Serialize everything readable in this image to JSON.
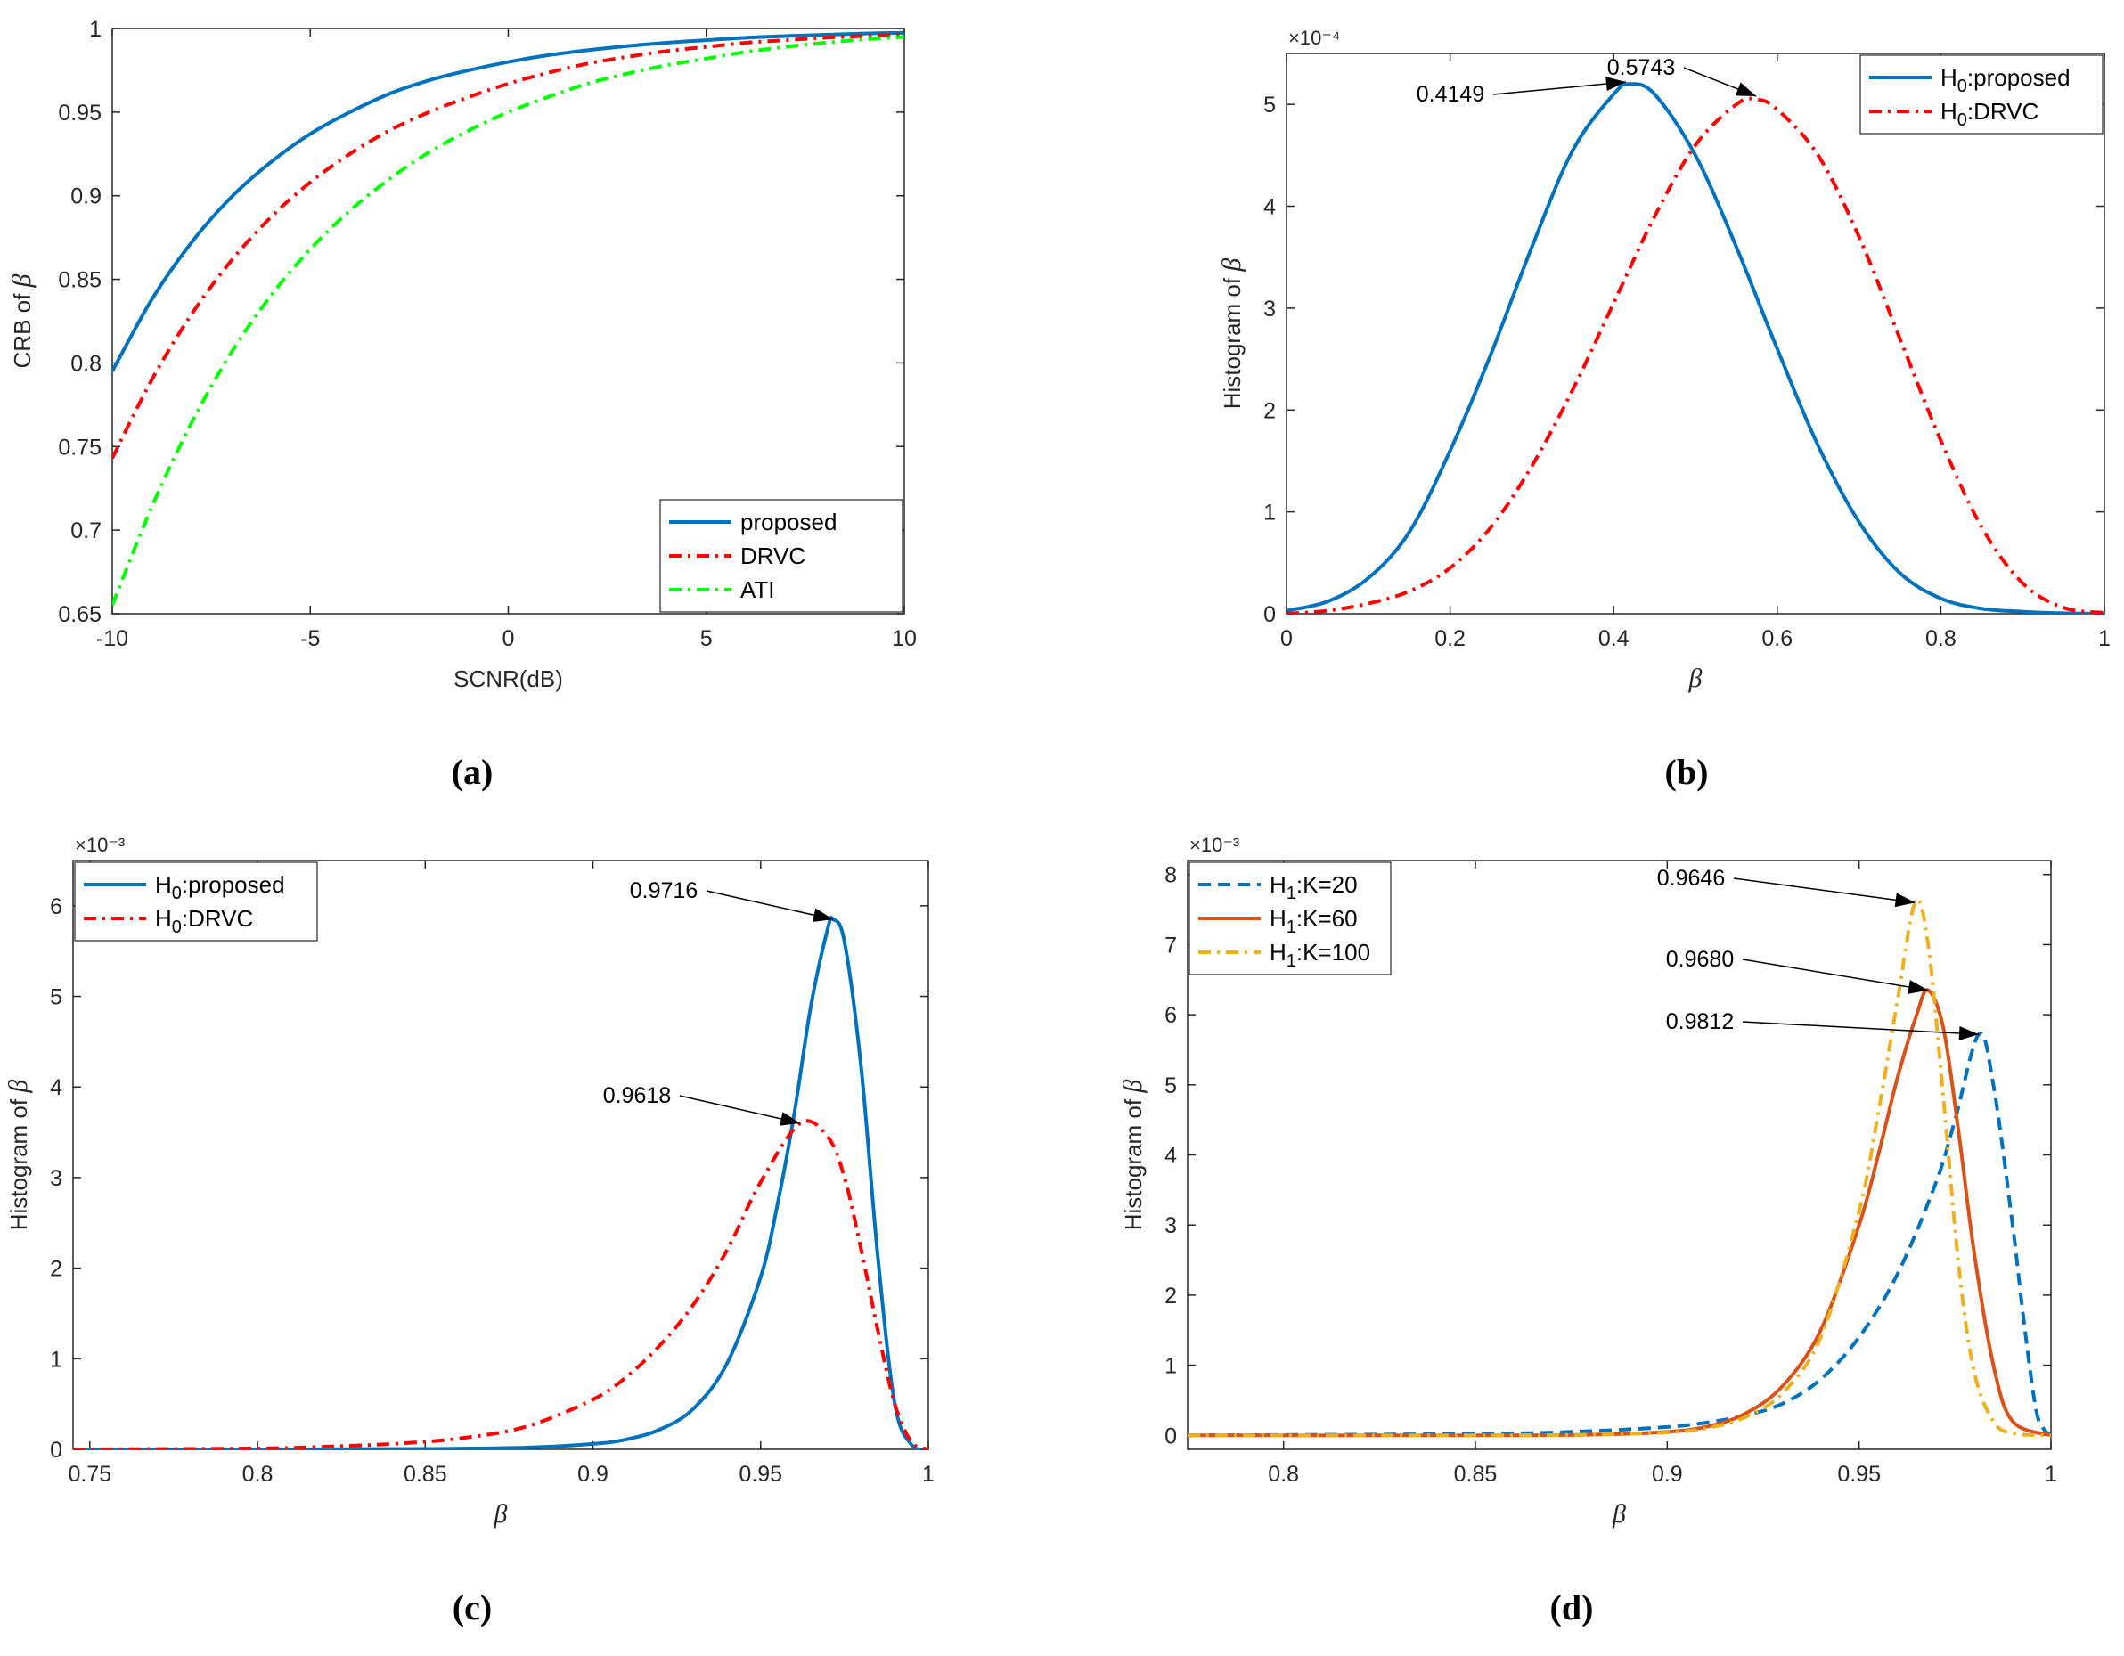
{
  "figure": {
    "captions": [
      "(a)",
      "(b)",
      "(c)",
      "(d)"
    ]
  },
  "chart_data": [
    {
      "id": "a",
      "type": "line",
      "xlabel": "SCNR(dB)",
      "ylabel": "CRB of",
      "ylabel_symbol": "β",
      "xlim": [
        -10,
        10
      ],
      "ylim": [
        0.65,
        1.0
      ],
      "xticks": [
        -10,
        -5,
        0,
        5,
        10
      ],
      "xtick_labels": [
        "-10",
        "-5",
        "0",
        "5",
        "10"
      ],
      "yticks": [
        0.65,
        0.7,
        0.75,
        0.8,
        0.85,
        0.9,
        0.95,
        1.0
      ],
      "ytick_labels": [
        "0.65",
        "0.7",
        "0.75",
        "0.8",
        "0.85",
        "0.9",
        "0.95",
        "1"
      ],
      "legend_position": "bottom-right",
      "exponent": "",
      "series": [
        {
          "name": "proposed",
          "name_sub": "",
          "name_rest": "",
          "color": "#0072BD",
          "dash": "solid",
          "x": [
            -10,
            -9,
            -8,
            -7,
            -6,
            -5,
            -4,
            -3,
            -2,
            -1,
            0,
            1,
            2,
            3,
            4,
            5,
            6,
            7,
            8,
            9,
            10
          ],
          "y": [
            0.795,
            0.838,
            0.872,
            0.899,
            0.92,
            0.937,
            0.95,
            0.961,
            0.969,
            0.975,
            0.98,
            0.984,
            0.987,
            0.9895,
            0.9915,
            0.993,
            0.9945,
            0.9955,
            0.9963,
            0.997,
            0.9975
          ]
        },
        {
          "name": "DRVC",
          "name_sub": "",
          "name_rest": "",
          "color": "#FF0000",
          "dash": "dashdot",
          "x": [
            -10,
            -9,
            -8,
            -7,
            -6,
            -5,
            -4,
            -3,
            -2,
            -1,
            0,
            1,
            2,
            3,
            4,
            5,
            6,
            7,
            8,
            9,
            10
          ],
          "y": [
            0.743,
            0.79,
            0.829,
            0.861,
            0.887,
            0.908,
            0.925,
            0.939,
            0.95,
            0.959,
            0.967,
            0.9735,
            0.979,
            0.983,
            0.9865,
            0.989,
            0.9915,
            0.993,
            0.9945,
            0.9955,
            0.9965
          ]
        },
        {
          "name": "ATI",
          "name_sub": "",
          "name_rest": "",
          "color": "#00FF00",
          "dash": "dashdot",
          "x": [
            -10,
            -9,
            -8,
            -7,
            -6,
            -5,
            -4,
            -3,
            -2,
            -1,
            0,
            1,
            2,
            3,
            4,
            5,
            6,
            7,
            8,
            9,
            10
          ],
          "y": [
            0.655,
            0.714,
            0.764,
            0.806,
            0.84,
            0.868,
            0.891,
            0.91,
            0.926,
            0.939,
            0.95,
            0.959,
            0.967,
            0.973,
            0.978,
            0.982,
            0.986,
            0.989,
            0.9915,
            0.9935,
            0.995
          ]
        }
      ],
      "annotations": []
    },
    {
      "id": "b",
      "type": "line",
      "xlabel": "β",
      "ylabel": "Histogram of",
      "ylabel_symbol": "β",
      "xlim": [
        0,
        1
      ],
      "ylim": [
        0,
        5.5
      ],
      "xticks": [
        0,
        0.2,
        0.4,
        0.6,
        0.8,
        1
      ],
      "xtick_labels": [
        "0",
        "0.2",
        "0.4",
        "0.6",
        "0.8",
        "1"
      ],
      "yticks": [
        0,
        1,
        2,
        3,
        4,
        5
      ],
      "ytick_labels": [
        "0",
        "1",
        "2",
        "3",
        "4",
        "5"
      ],
      "legend_position": "top-right",
      "exponent": "×10⁻⁴",
      "series": [
        {
          "name": "H",
          "name_sub": "0",
          "name_rest": ":proposed",
          "color": "#0072BD",
          "dash": "solid",
          "x": [
            0,
            0.05,
            0.1,
            0.15,
            0.2,
            0.25,
            0.3,
            0.35,
            0.4,
            0.42,
            0.45,
            0.5,
            0.55,
            0.6,
            0.65,
            0.7,
            0.75,
            0.8,
            0.85,
            0.9,
            0.95,
            1.0
          ],
          "y": [
            0.03,
            0.12,
            0.35,
            0.8,
            1.6,
            2.55,
            3.6,
            4.55,
            5.1,
            5.2,
            5.1,
            4.5,
            3.6,
            2.6,
            1.65,
            0.9,
            0.4,
            0.15,
            0.05,
            0.02,
            0.005,
            0.0
          ]
        },
        {
          "name": "H",
          "name_sub": "0",
          "name_rest": ":DRVC",
          "color": "#FF0000",
          "dash": "dashdot",
          "x": [
            0,
            0.05,
            0.1,
            0.15,
            0.2,
            0.25,
            0.3,
            0.35,
            0.4,
            0.45,
            0.5,
            0.55,
            0.5743,
            0.6,
            0.65,
            0.7,
            0.75,
            0.8,
            0.85,
            0.9,
            0.95,
            1.0
          ],
          "y": [
            0.0,
            0.03,
            0.1,
            0.22,
            0.45,
            0.85,
            1.45,
            2.2,
            3.05,
            3.9,
            4.6,
            5.0,
            5.05,
            4.95,
            4.5,
            3.7,
            2.7,
            1.7,
            0.85,
            0.3,
            0.06,
            0.01
          ]
        }
      ],
      "annotations": [
        {
          "label": "0.4149",
          "x": 0.4149,
          "y": 5.22
        },
        {
          "label": "0.5743",
          "x": 0.5743,
          "y": 5.08
        }
      ]
    },
    {
      "id": "c",
      "type": "line",
      "xlabel": "β",
      "ylabel": "Histogram of",
      "ylabel_symbol": "β",
      "xlim": [
        0.745,
        1.0
      ],
      "ylim": [
        0,
        6.5
      ],
      "xticks": [
        0.75,
        0.8,
        0.85,
        0.9,
        0.95,
        1.0
      ],
      "xtick_labels": [
        "0.75",
        "0.8",
        "0.85",
        "0.9",
        "0.95",
        "1"
      ],
      "yticks": [
        0,
        1,
        2,
        3,
        4,
        5,
        6
      ],
      "ytick_labels": [
        "0",
        "1",
        "2",
        "3",
        "4",
        "5",
        "6"
      ],
      "legend_position": "top-left",
      "exponent": "×10⁻³",
      "series": [
        {
          "name": "H",
          "name_sub": "0",
          "name_rest": ":proposed",
          "color": "#0072BD",
          "dash": "solid",
          "x": [
            0.745,
            0.8,
            0.85,
            0.88,
            0.9,
            0.91,
            0.92,
            0.93,
            0.94,
            0.95,
            0.955,
            0.96,
            0.965,
            0.97,
            0.9716,
            0.975,
            0.98,
            0.985,
            0.99,
            0.995,
            1.0
          ],
          "y": [
            0.0,
            0.0,
            0.005,
            0.02,
            0.06,
            0.11,
            0.22,
            0.45,
            0.95,
            1.9,
            2.7,
            3.7,
            4.9,
            5.75,
            5.85,
            5.6,
            4.2,
            2.1,
            0.5,
            0.05,
            0.0
          ]
        },
        {
          "name": "H",
          "name_sub": "0",
          "name_rest": ":DRVC",
          "color": "#FF0000",
          "dash": "dashdot",
          "x": [
            0.745,
            0.8,
            0.82,
            0.84,
            0.86,
            0.88,
            0.9,
            0.91,
            0.92,
            0.93,
            0.94,
            0.95,
            0.9618,
            0.97,
            0.975,
            0.98,
            0.985,
            0.99,
            0.995,
            1.0
          ],
          "y": [
            0.0,
            0.01,
            0.03,
            0.06,
            0.12,
            0.25,
            0.55,
            0.8,
            1.15,
            1.6,
            2.2,
            2.95,
            3.6,
            3.45,
            3.0,
            2.2,
            1.3,
            0.5,
            0.08,
            0.0
          ]
        }
      ],
      "annotations": [
        {
          "label": "0.9716",
          "x": 0.9716,
          "y": 5.85
        },
        {
          "label": "0.9618",
          "x": 0.9618,
          "y": 3.6
        }
      ]
    },
    {
      "id": "d",
      "type": "line",
      "xlabel": "β",
      "ylabel": "Histogram of",
      "ylabel_symbol": "β",
      "xlim": [
        0.775,
        1.0
      ],
      "ylim": [
        -0.2,
        8.2
      ],
      "xticks": [
        0.8,
        0.85,
        0.9,
        0.95,
        1.0
      ],
      "xtick_labels": [
        "0.8",
        "0.85",
        "0.9",
        "0.95",
        "1"
      ],
      "yticks": [
        0,
        1,
        2,
        3,
        4,
        5,
        6,
        7,
        8
      ],
      "ytick_labels": [
        "0",
        "1",
        "2",
        "3",
        "4",
        "5",
        "6",
        "7",
        "8"
      ],
      "legend_position": "top-left",
      "exponent": "×10⁻³",
      "series": [
        {
          "name": "H",
          "name_sub": "1",
          "name_rest": ":K=20",
          "color": "#0072BD",
          "dash": "dashed",
          "x": [
            0.775,
            0.85,
            0.88,
            0.9,
            0.91,
            0.92,
            0.93,
            0.94,
            0.95,
            0.96,
            0.97,
            0.975,
            0.9812,
            0.985,
            0.99,
            0.993,
            0.996,
            0.998,
            1.0
          ],
          "y": [
            0.0,
            0.02,
            0.06,
            0.12,
            0.18,
            0.28,
            0.45,
            0.8,
            1.4,
            2.3,
            3.6,
            4.5,
            5.72,
            5.0,
            3.0,
            1.6,
            0.4,
            0.1,
            0.0
          ]
        },
        {
          "name": "H",
          "name_sub": "1",
          "name_rest": ":K=60",
          "color": "#D95319",
          "dash": "solid",
          "x": [
            0.775,
            0.85,
            0.88,
            0.9,
            0.91,
            0.92,
            0.93,
            0.94,
            0.95,
            0.955,
            0.96,
            0.965,
            0.968,
            0.972,
            0.976,
            0.98,
            0.985,
            0.99,
            1.0
          ],
          "y": [
            0.0,
            0.0,
            0.01,
            0.05,
            0.12,
            0.3,
            0.7,
            1.5,
            3.0,
            4.0,
            5.1,
            6.0,
            6.35,
            5.8,
            4.3,
            2.6,
            1.0,
            0.2,
            0.0
          ]
        },
        {
          "name": "H",
          "name_sub": "1",
          "name_rest": ":K=100",
          "color": "#EDB120",
          "dash": "dashdot",
          "x": [
            0.775,
            0.85,
            0.88,
            0.9,
            0.91,
            0.92,
            0.93,
            0.94,
            0.95,
            0.955,
            0.96,
            0.9646,
            0.968,
            0.972,
            0.976,
            0.98,
            0.985,
            0.99,
            1.0
          ],
          "y": [
            0.0,
            0.0,
            0.01,
            0.04,
            0.1,
            0.25,
            0.6,
            1.4,
            3.2,
            4.6,
            6.2,
            7.6,
            7.0,
            4.8,
            2.4,
            0.9,
            0.2,
            0.03,
            0.0
          ]
        }
      ],
      "annotations": [
        {
          "label": "0.9646",
          "x": 0.9646,
          "y": 7.6
        },
        {
          "label": "0.9680",
          "x": 0.968,
          "y": 6.35
        },
        {
          "label": "0.9812",
          "x": 0.9812,
          "y": 5.72
        }
      ]
    }
  ]
}
